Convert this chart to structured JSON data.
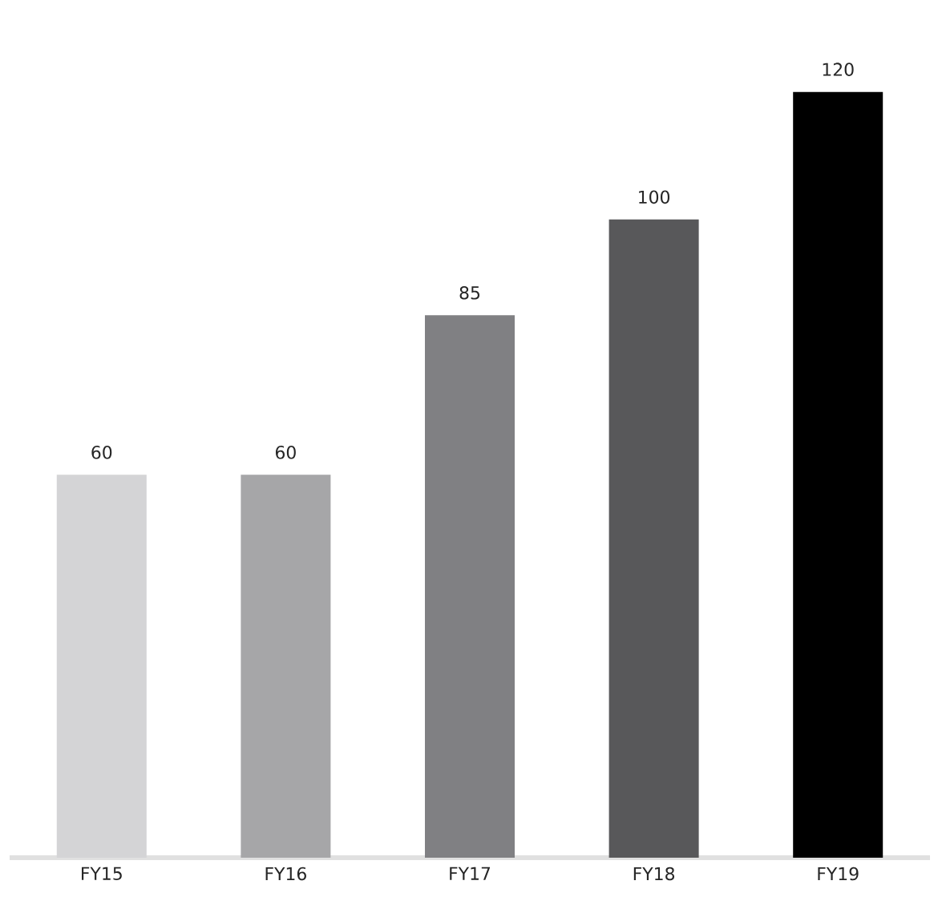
{
  "chart_data": {
    "type": "bar",
    "categories": [
      "FY15",
      "FY16",
      "FY17",
      "FY18",
      "FY19"
    ],
    "values": [
      60,
      60,
      85,
      100,
      120
    ],
    "colors": [
      "#d4d4d6",
      "#a6a6a8",
      "#808083",
      "#58585a",
      "#000000"
    ],
    "data_labels": true
  }
}
